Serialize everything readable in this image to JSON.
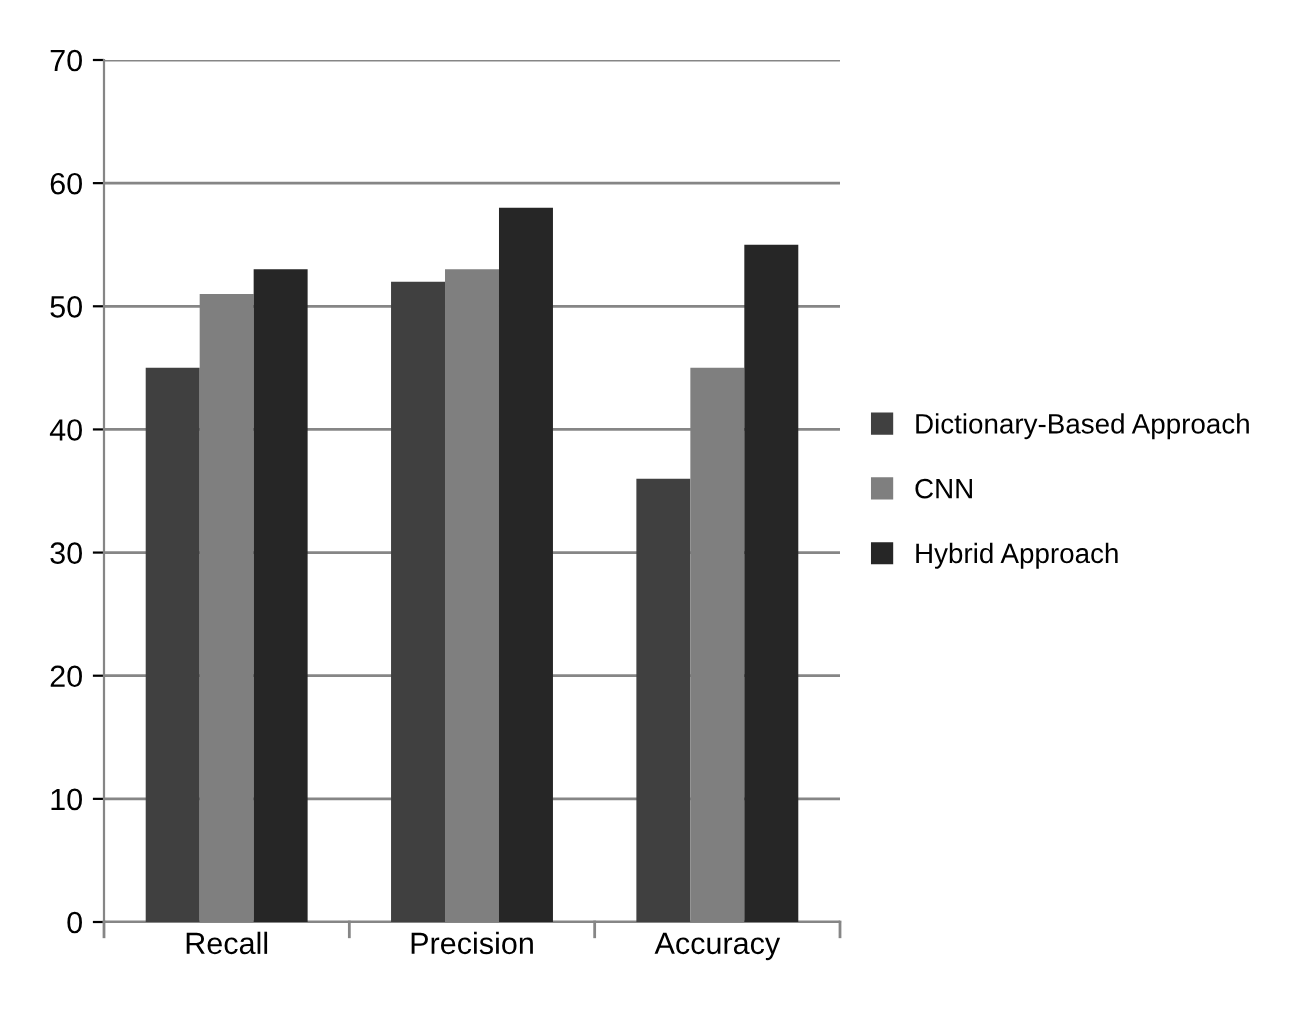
{
  "chart_data": {
    "type": "bar",
    "categories": [
      "Recall",
      "Precision",
      "Accuracy"
    ],
    "series": [
      {
        "name": "Dictionary-Based Approach",
        "color": "#404040",
        "values": [
          45,
          52,
          36
        ]
      },
      {
        "name": "CNN",
        "color": "#7f7f7f",
        "values": [
          51,
          53,
          45
        ]
      },
      {
        "name": "Hybrid Approach",
        "color": "#262626",
        "values": [
          53,
          58,
          55
        ]
      }
    ],
    "ylim": [
      0,
      70
    ],
    "yticks": [
      0,
      10,
      20,
      30,
      40,
      50,
      60,
      70
    ],
    "grid": "y",
    "legend": "right"
  }
}
